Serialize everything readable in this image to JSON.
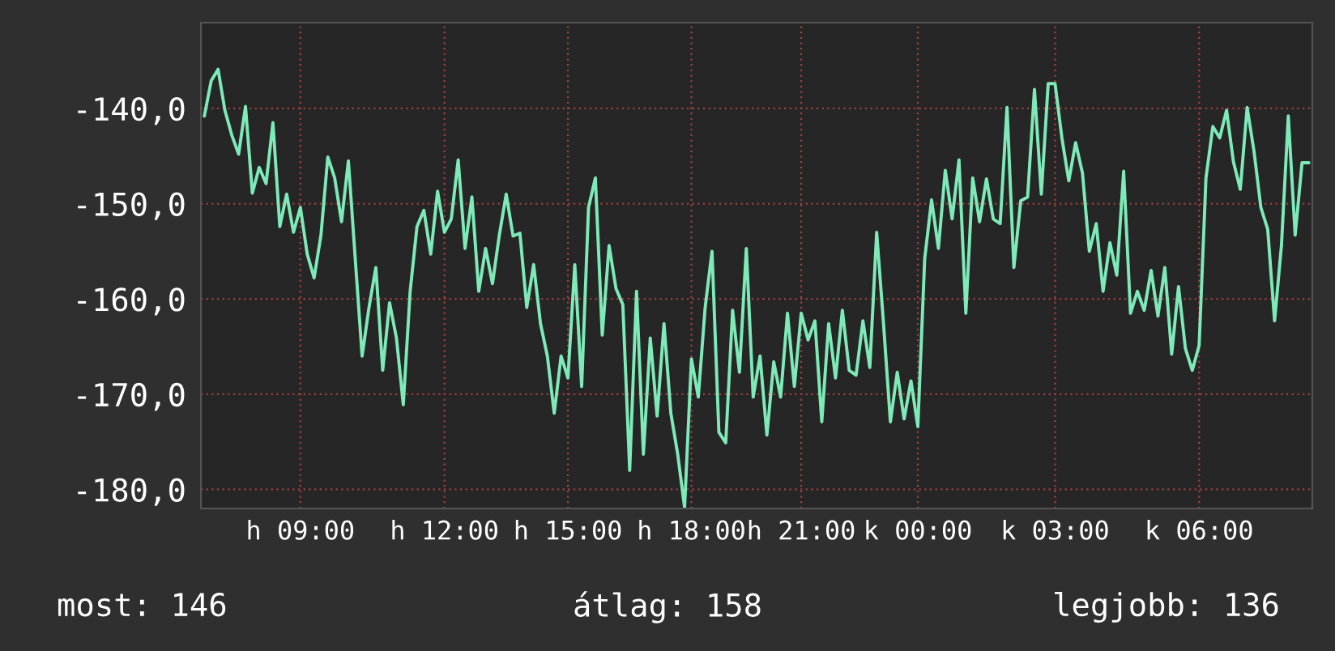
{
  "chart_data": {
    "type": "line",
    "categories": [
      null,
      null,
      null,
      null,
      null,
      null,
      null,
      null,
      null,
      null,
      null,
      null,
      null,
      null,
      "h 09:00",
      null,
      null,
      null,
      null,
      null,
      null,
      null,
      null,
      null,
      null,
      null,
      null,
      null,
      null,
      null,
      null,
      null,
      null,
      null,
      null,
      "h 12:00",
      null,
      null,
      null,
      null,
      null,
      null,
      null,
      null,
      null,
      null,
      null,
      null,
      null,
      null,
      null,
      null,
      null,
      "h 15:00",
      null,
      null,
      null,
      null,
      null,
      null,
      null,
      null,
      null,
      null,
      null,
      null,
      null,
      null,
      null,
      null,
      null,
      "h 18:00",
      null,
      null,
      null,
      null,
      null,
      null,
      null,
      null,
      null,
      null,
      null,
      null,
      null,
      null,
      null,
      "h 21:00",
      null,
      null,
      null,
      null,
      null,
      null,
      null,
      null,
      null,
      null,
      null,
      null,
      null,
      null,
      null,
      null,
      "k 00:00",
      null,
      null,
      null,
      null,
      null,
      null,
      null,
      null,
      null,
      null,
      null,
      null,
      null,
      null,
      null,
      null,
      null,
      null,
      null,
      "k 03:00",
      null,
      null,
      null,
      null,
      null,
      null,
      null,
      null,
      null,
      null,
      null,
      null,
      null,
      null,
      null,
      null,
      null,
      null,
      null,
      null,
      "k 06:00",
      null,
      null,
      null,
      null,
      null,
      null,
      null,
      null,
      null,
      null,
      null,
      null,
      null,
      null,
      null,
      null
    ],
    "series": [
      {
        "color": "#7deab8",
        "values": [
          -140.8,
          -137.1,
          -135.9,
          -140.2,
          -142.8,
          -144.8,
          -139.8,
          -148.9,
          -146.2,
          -147.9,
          -141.5,
          -152.4,
          -149.0,
          -153.0,
          -150.4,
          -155.3,
          -157.8,
          -153.3,
          -145.1,
          -147.3,
          -151.9,
          -145.5,
          -155.8,
          -166.0,
          -160.9,
          -156.7,
          -167.5,
          -160.4,
          -164.1,
          -171.1,
          -159.2,
          -152.4,
          -150.7,
          -155.3,
          -148.7,
          -153.0,
          -151.6,
          -145.4,
          -154.7,
          -149.3,
          -159.2,
          -154.7,
          -158.4,
          -153.3,
          -149.0,
          -153.4,
          -153.1,
          -160.9,
          -156.4,
          -162.6,
          -166.0,
          -172.0,
          -166.0,
          -168.3,
          -156.4,
          -169.2,
          -150.4,
          -147.3,
          -163.8,
          -154.4,
          -158.9,
          -160.6,
          -178.0,
          -159.2,
          -176.3,
          -164.1,
          -172.3,
          -162.6,
          -172.0,
          -176.3,
          -181.9,
          -166.3,
          -170.3,
          -160.9,
          -155.0,
          -174.0,
          -175.1,
          -161.2,
          -167.7,
          -154.7,
          -170.3,
          -166.0,
          -174.3,
          -166.6,
          -170.3,
          -161.5,
          -169.2,
          -161.5,
          -164.3,
          -162.3,
          -172.9,
          -162.6,
          -168.3,
          -161.2,
          -167.5,
          -168.0,
          -162.3,
          -167.2,
          -153.0,
          -162.6,
          -172.9,
          -167.7,
          -172.6,
          -168.6,
          -173.4,
          -155.8,
          -149.6,
          -154.7,
          -146.5,
          -151.6,
          -145.4,
          -161.5,
          -147.3,
          -151.9,
          -147.4,
          -151.6,
          -152.1,
          -139.9,
          -156.7,
          -149.7,
          -149.3,
          -138.0,
          -149.0,
          -137.4,
          -137.4,
          -143.1,
          -147.6,
          -143.6,
          -146.8,
          -155.0,
          -152.1,
          -159.2,
          -154.1,
          -157.5,
          -146.6,
          -161.5,
          -159.2,
          -161.2,
          -157.0,
          -161.8,
          -156.7,
          -165.8,
          -158.7,
          -165.2,
          -167.5,
          -164.9,
          -147.3,
          -141.9,
          -143.1,
          -140.2,
          -145.6,
          -148.5,
          -139.9,
          -144.5,
          -150.4,
          -152.7,
          -162.3,
          -154.4,
          -140.8,
          -153.3,
          -145.7,
          -145.7
        ]
      }
    ],
    "ylim": [
      -182,
      -131
    ],
    "yticks": [
      {
        "value": -180,
        "label": "-180,0"
      },
      {
        "value": -170,
        "label": "-170,0"
      },
      {
        "value": -160,
        "label": "-160,0"
      },
      {
        "value": -150,
        "label": "-150,0"
      },
      {
        "value": -140,
        "label": "-140,0"
      }
    ],
    "grid": true,
    "annotations": [
      "most: 146",
      "átlag: 158",
      "legjobb: 136"
    ]
  }
}
